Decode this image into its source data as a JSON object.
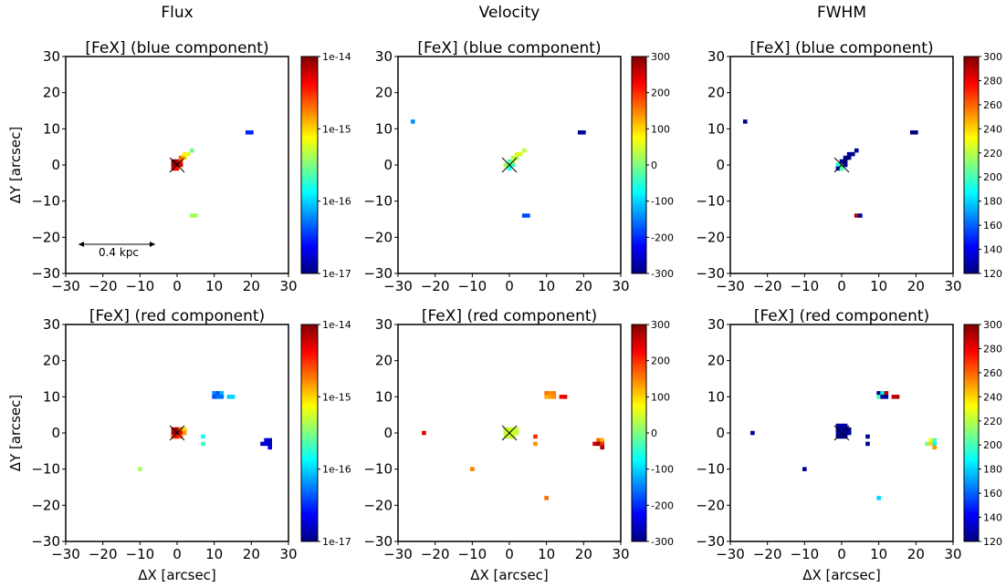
{
  "column_titles": [
    "Flux",
    "Velocity",
    "FWHM"
  ],
  "panel_titles": {
    "top": "[FeX] (blue component)",
    "bottom": "[FeX] (red component)"
  },
  "axis": {
    "xlabel": "ΔX [arcsec]",
    "ylabel": "ΔY [arcsec]",
    "xticks": [
      -30,
      -20,
      -10,
      0,
      10,
      20,
      30
    ],
    "yticks": [
      -30,
      -20,
      -10,
      0,
      10,
      20,
      30
    ],
    "xtick_labels": [
      "−30",
      "−20",
      "−10",
      "0",
      "10",
      "20",
      "30"
    ],
    "ytick_labels": [
      "−30",
      "−20",
      "−10",
      "0",
      "10",
      "20",
      "30"
    ]
  },
  "scale_bar": {
    "label": "0.4 kpc"
  },
  "colors": {
    "jet": [
      "#00007f",
      "#0000ff",
      "#007fff",
      "#00ffff",
      "#7fff7f",
      "#ffff00",
      "#ff7f00",
      "#ff0000",
      "#7f0000"
    ]
  },
  "chart_data": [
    {
      "type": "heatmap",
      "quantity": "flux",
      "component": "blue",
      "title": "[FeX] (blue component)",
      "xlim": [
        -30,
        30
      ],
      "ylim": [
        -30,
        30
      ],
      "colorbar": {
        "scale": "log",
        "range": [
          1e-17,
          1e-14
        ],
        "ticks": [
          1e-17,
          1e-16,
          1e-15,
          1e-14
        ],
        "tick_labels": [
          "1e-17",
          "1e-16",
          "1e-15",
          "1e-14"
        ]
      },
      "points": [
        {
          "x": -1,
          "y": 1,
          "v": 1e-14
        },
        {
          "x": 0,
          "y": 1,
          "v": 8e-15
        },
        {
          "x": 1,
          "y": 1,
          "v": 3e-15
        },
        {
          "x": -1,
          "y": 0,
          "v": 9e-15
        },
        {
          "x": 0,
          "y": 0,
          "v": 1e-14
        },
        {
          "x": 1,
          "y": 0,
          "v": 6e-15
        },
        {
          "x": -1,
          "y": -1,
          "v": 5e-15
        },
        {
          "x": 0,
          "y": -1,
          "v": 4e-15
        },
        {
          "x": 1,
          "y": 2,
          "v": 2e-15
        },
        {
          "x": 2,
          "y": 2,
          "v": 1e-15
        },
        {
          "x": 2,
          "y": 3,
          "v": 8e-16
        },
        {
          "x": 3,
          "y": 3,
          "v": 6e-16
        },
        {
          "x": 4,
          "y": 4,
          "v": 3e-16
        },
        {
          "x": 19,
          "y": 9,
          "v": 3e-17
        },
        {
          "x": 20,
          "y": 9,
          "v": 3e-17
        },
        {
          "x": 4,
          "y": -14,
          "v": 4e-16
        },
        {
          "x": 5,
          "y": -14,
          "v": 4e-16
        }
      ]
    },
    {
      "type": "heatmap",
      "quantity": "velocity",
      "component": "blue",
      "title": "[FeX] (blue component)",
      "xlim": [
        -30,
        30
      ],
      "ylim": [
        -30,
        30
      ],
      "colorbar": {
        "scale": "linear",
        "range": [
          -300,
          300
        ],
        "ticks": [
          -300,
          -200,
          -100,
          0,
          100,
          200,
          300
        ],
        "tick_labels": [
          "-300",
          "-200",
          "-100",
          "0",
          "100",
          "200",
          "300"
        ]
      },
      "points": [
        {
          "x": -26,
          "y": 12,
          "v": -140
        },
        {
          "x": -1,
          "y": 0,
          "v": 20
        },
        {
          "x": 0,
          "y": 0,
          "v": 10
        },
        {
          "x": 1,
          "y": 0,
          "v": -40
        },
        {
          "x": 0,
          "y": 1,
          "v": -30
        },
        {
          "x": 1,
          "y": 1,
          "v": 30
        },
        {
          "x": 1,
          "y": 2,
          "v": 40
        },
        {
          "x": 2,
          "y": 2,
          "v": 20
        },
        {
          "x": 2,
          "y": 3,
          "v": 60
        },
        {
          "x": 3,
          "y": 3,
          "v": 50
        },
        {
          "x": 4,
          "y": 4,
          "v": 40
        },
        {
          "x": 0,
          "y": -1,
          "v": -60
        },
        {
          "x": 19,
          "y": 9,
          "v": -280
        },
        {
          "x": 20,
          "y": 9,
          "v": -280
        },
        {
          "x": 4,
          "y": -14,
          "v": -180
        },
        {
          "x": 5,
          "y": -14,
          "v": -180
        }
      ]
    },
    {
      "type": "heatmap",
      "quantity": "fwhm",
      "component": "blue",
      "title": "[FeX] (blue component)",
      "xlim": [
        -30,
        30
      ],
      "ylim": [
        -30,
        30
      ],
      "colorbar": {
        "scale": "linear",
        "range": [
          120,
          300
        ],
        "ticks": [
          120,
          140,
          160,
          180,
          200,
          220,
          240,
          260,
          280,
          300
        ],
        "tick_labels": [
          "120",
          "140",
          "160",
          "180",
          "200",
          "220",
          "240",
          "260",
          "280",
          "300"
        ]
      },
      "points": [
        {
          "x": -26,
          "y": 12,
          "v": 125
        },
        {
          "x": -1,
          "y": 0,
          "v": 190
        },
        {
          "x": 0,
          "y": 0,
          "v": 210
        },
        {
          "x": 1,
          "y": 0,
          "v": 125
        },
        {
          "x": -1,
          "y": -1,
          "v": 125
        },
        {
          "x": 0,
          "y": -1,
          "v": 200
        },
        {
          "x": 0,
          "y": 1,
          "v": 122
        },
        {
          "x": 1,
          "y": 1,
          "v": 125
        },
        {
          "x": 1,
          "y": 2,
          "v": 122
        },
        {
          "x": 2,
          "y": 2,
          "v": 125
        },
        {
          "x": 2,
          "y": 3,
          "v": 125
        },
        {
          "x": 3,
          "y": 3,
          "v": 122
        },
        {
          "x": 4,
          "y": 4,
          "v": 125
        },
        {
          "x": 19,
          "y": 9,
          "v": 122
        },
        {
          "x": 20,
          "y": 9,
          "v": 122
        },
        {
          "x": 4,
          "y": -14,
          "v": 290
        },
        {
          "x": 5,
          "y": -14,
          "v": 125
        }
      ]
    },
    {
      "type": "heatmap",
      "quantity": "flux",
      "component": "red",
      "title": "[FeX] (red component)",
      "xlim": [
        -30,
        30
      ],
      "ylim": [
        -30,
        30
      ],
      "colorbar": {
        "scale": "log",
        "range": [
          1e-17,
          1e-14
        ],
        "ticks": [
          1e-17,
          1e-16,
          1e-15,
          1e-14
        ],
        "tick_labels": [
          "1e-17",
          "1e-16",
          "1e-15",
          "1e-14"
        ]
      },
      "points": [
        {
          "x": -1,
          "y": 1,
          "v": 6e-15
        },
        {
          "x": 0,
          "y": 1,
          "v": 8e-15
        },
        {
          "x": 1,
          "y": 1,
          "v": 2e-15
        },
        {
          "x": 2,
          "y": 1,
          "v": 1e-15
        },
        {
          "x": -1,
          "y": 0,
          "v": 8e-15
        },
        {
          "x": 0,
          "y": 0,
          "v": 1e-14
        },
        {
          "x": 1,
          "y": 0,
          "v": 5e-15
        },
        {
          "x": 2,
          "y": 0,
          "v": 1.5e-15
        },
        {
          "x": -1,
          "y": -1,
          "v": 3e-15
        },
        {
          "x": 0,
          "y": -1,
          "v": 4e-15
        },
        {
          "x": 1,
          "y": -1,
          "v": 2e-15
        },
        {
          "x": 10,
          "y": 11,
          "v": 6e-17
        },
        {
          "x": 11,
          "y": 11,
          "v": 4e-17
        },
        {
          "x": 12,
          "y": 11,
          "v": 8e-17
        },
        {
          "x": 10,
          "y": 10,
          "v": 4e-17
        },
        {
          "x": 11,
          "y": 10,
          "v": 5e-17
        },
        {
          "x": 12,
          "y": 10,
          "v": 5e-17
        },
        {
          "x": 14,
          "y": 10,
          "v": 1e-16
        },
        {
          "x": 15,
          "y": 10,
          "v": 1e-16
        },
        {
          "x": 7,
          "y": -1,
          "v": 1.5e-16
        },
        {
          "x": 7,
          "y": -3,
          "v": 2e-16
        },
        {
          "x": 24,
          "y": -2,
          "v": 2e-17
        },
        {
          "x": 25,
          "y": -2,
          "v": 1.5e-17
        },
        {
          "x": 23,
          "y": -3,
          "v": 1.5e-17
        },
        {
          "x": 24,
          "y": -3,
          "v": 2e-17
        },
        {
          "x": 25,
          "y": -3,
          "v": 1.5e-17
        },
        {
          "x": 25,
          "y": -4,
          "v": 2e-17
        },
        {
          "x": -10,
          "y": -10,
          "v": 4e-16
        }
      ]
    },
    {
      "type": "heatmap",
      "quantity": "velocity",
      "component": "red",
      "title": "[FeX] (red component)",
      "xlim": [
        -30,
        30
      ],
      "ylim": [
        -30,
        30
      ],
      "colorbar": {
        "scale": "linear",
        "range": [
          -300,
          300
        ],
        "ticks": [
          -300,
          -200,
          -100,
          0,
          100,
          200,
          300
        ],
        "tick_labels": [
          "-300",
          "-200",
          "-100",
          "0",
          "100",
          "200",
          "300"
        ]
      },
      "points": [
        {
          "x": -1,
          "y": 1,
          "v": 40
        },
        {
          "x": 0,
          "y": 1,
          "v": 50
        },
        {
          "x": 1,
          "y": 1,
          "v": 40
        },
        {
          "x": 2,
          "y": 1,
          "v": 40
        },
        {
          "x": -1,
          "y": 0,
          "v": 40
        },
        {
          "x": 0,
          "y": 0,
          "v": 50
        },
        {
          "x": 1,
          "y": 0,
          "v": 50
        },
        {
          "x": 2,
          "y": 0,
          "v": 40
        },
        {
          "x": -1,
          "y": -1,
          "v": 40
        },
        {
          "x": 0,
          "y": -1,
          "v": 40
        },
        {
          "x": 1,
          "y": -1,
          "v": 50
        },
        {
          "x": -23,
          "y": 0,
          "v": 240
        },
        {
          "x": 10,
          "y": 11,
          "v": 160
        },
        {
          "x": 11,
          "y": 11,
          "v": 140
        },
        {
          "x": 12,
          "y": 11,
          "v": 150
        },
        {
          "x": 10,
          "y": 10,
          "v": 120
        },
        {
          "x": 11,
          "y": 10,
          "v": 130
        },
        {
          "x": 12,
          "y": 10,
          "v": 140
        },
        {
          "x": 14,
          "y": 10,
          "v": 230
        },
        {
          "x": 15,
          "y": 10,
          "v": 240
        },
        {
          "x": 7,
          "y": -1,
          "v": 200
        },
        {
          "x": 7,
          "y": -3,
          "v": 140
        },
        {
          "x": 24,
          "y": -2,
          "v": 170
        },
        {
          "x": 25,
          "y": -2,
          "v": 120
        },
        {
          "x": 23,
          "y": -3,
          "v": 250
        },
        {
          "x": 24,
          "y": -3,
          "v": 280
        },
        {
          "x": 25,
          "y": -3,
          "v": 200
        },
        {
          "x": 25,
          "y": -4,
          "v": 270
        },
        {
          "x": -10,
          "y": -10,
          "v": 150
        },
        {
          "x": 10,
          "y": -18,
          "v": 160
        }
      ]
    },
    {
      "type": "heatmap",
      "quantity": "fwhm",
      "component": "red",
      "title": "[FeX] (red component)",
      "xlim": [
        -30,
        30
      ],
      "ylim": [
        -30,
        30
      ],
      "colorbar": {
        "scale": "linear",
        "range": [
          120,
          300
        ],
        "ticks": [
          120,
          140,
          160,
          180,
          200,
          220,
          240,
          260,
          280,
          300
        ],
        "tick_labels": [
          "120",
          "140",
          "160",
          "180",
          "200",
          "220",
          "240",
          "260",
          "280",
          "300"
        ]
      },
      "points": [
        {
          "x": -1,
          "y": 2,
          "v": 125
        },
        {
          "x": 0,
          "y": 2,
          "v": 125
        },
        {
          "x": 1,
          "y": 2,
          "v": 125
        },
        {
          "x": -1,
          "y": 1,
          "v": 122
        },
        {
          "x": 0,
          "y": 1,
          "v": 125
        },
        {
          "x": 1,
          "y": 1,
          "v": 125
        },
        {
          "x": 2,
          "y": 1,
          "v": 122
        },
        {
          "x": -1,
          "y": 0,
          "v": 125
        },
        {
          "x": 0,
          "y": 0,
          "v": 140
        },
        {
          "x": 1,
          "y": 0,
          "v": 122
        },
        {
          "x": 2,
          "y": 0,
          "v": 125
        },
        {
          "x": -1,
          "y": -1,
          "v": 125
        },
        {
          "x": 0,
          "y": -1,
          "v": 122
        },
        {
          "x": 1,
          "y": -1,
          "v": 125
        },
        {
          "x": -24,
          "y": 0,
          "v": 125
        },
        {
          "x": 10,
          "y": 11,
          "v": 122
        },
        {
          "x": 11,
          "y": 11,
          "v": 190
        },
        {
          "x": 12,
          "y": 11,
          "v": 290
        },
        {
          "x": 10,
          "y": 10,
          "v": 200
        },
        {
          "x": 11,
          "y": 10,
          "v": 125
        },
        {
          "x": 12,
          "y": 10,
          "v": 125
        },
        {
          "x": 14,
          "y": 10,
          "v": 290
        },
        {
          "x": 15,
          "y": 10,
          "v": 290
        },
        {
          "x": 7,
          "y": -1,
          "v": 125
        },
        {
          "x": 7,
          "y": -3,
          "v": 122
        },
        {
          "x": 24,
          "y": -2,
          "v": 230
        },
        {
          "x": 25,
          "y": -2,
          "v": 200
        },
        {
          "x": 23,
          "y": -3,
          "v": 210
        },
        {
          "x": 24,
          "y": -3,
          "v": 240
        },
        {
          "x": 25,
          "y": -3,
          "v": 190
        },
        {
          "x": 25,
          "y": -4,
          "v": 250
        },
        {
          "x": -10,
          "y": -10,
          "v": 125
        },
        {
          "x": 10,
          "y": -18,
          "v": 180
        }
      ]
    }
  ]
}
